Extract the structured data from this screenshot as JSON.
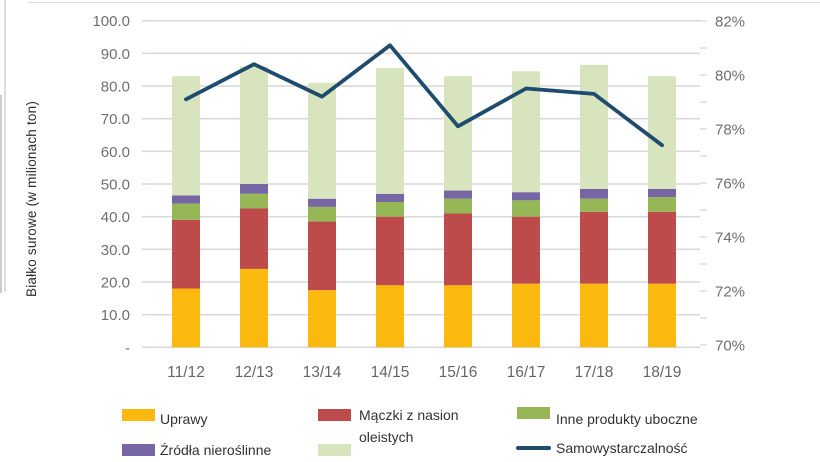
{
  "colors": {
    "grid": "#DADADA",
    "axis_text": "#6F6F6F",
    "legend_text": "#323232",
    "background": "#FFFFFF"
  },
  "chart_data": {
    "type": "stacked-bar+line",
    "title": "",
    "categories": [
      "11/12",
      "12/13",
      "13/14",
      "14/15",
      "15/16",
      "16/17",
      "17/18",
      "18/19"
    ],
    "series": [
      {
        "name": "Uprawy",
        "color": "#FBB80F",
        "values": [
          18,
          24,
          17.5,
          19,
          19,
          19.5,
          19.5,
          19.5
        ]
      },
      {
        "name": "Mączki z nasion",
        "color": "#BE4B4B",
        "values": [
          21,
          18.5,
          21,
          21,
          22,
          20.5,
          22,
          22
        ]
      },
      {
        "name": "Inne produkty uboczne",
        "color": "#95B756",
        "values": [
          5,
          4.5,
          4.5,
          4.5,
          4.5,
          5,
          4,
          4.5
        ]
      },
      {
        "name": "Źródła nieroślinne",
        "color": "#7766A4",
        "values": [
          2.5,
          3,
          2.5,
          2.5,
          2.5,
          2.5,
          3,
          2.5
        ]
      },
      {
        "name": "oleistych",
        "color": "#D8E4BE",
        "values": [
          36.5,
          36,
          35.5,
          38.5,
          35,
          37,
          38,
          34.5
        ]
      }
    ],
    "bar_totals": [
      83,
      86,
      81,
      85.5,
      83,
      84.5,
      86.5,
      83
    ],
    "line": {
      "name": "Samowystarczalność",
      "color": "#1E4B6E",
      "values": [
        79.1,
        80.4,
        79.2,
        81.1,
        78.1,
        79.5,
        79.3,
        77.4
      ]
    },
    "left_axis": {
      "title": "Białko surowe (w milionach ton)",
      "range": [
        0,
        100
      ],
      "ticks": [
        {
          "v": 100,
          "label": "100.0"
        },
        {
          "v": 90,
          "label": "90.0"
        },
        {
          "v": 80,
          "label": "80.0"
        },
        {
          "v": 70,
          "label": "70.0"
        },
        {
          "v": 60,
          "label": "60.0"
        },
        {
          "v": 50,
          "label": "50.0"
        },
        {
          "v": 40,
          "label": "40.0"
        },
        {
          "v": 30,
          "label": "30.0"
        },
        {
          "v": 20,
          "label": "20.0"
        },
        {
          "v": 10,
          "label": "10.0"
        },
        {
          "v": 0,
          "label": "-"
        }
      ]
    },
    "right_axis": {
      "range": [
        70,
        82
      ],
      "minor_step": 1,
      "ticks": [
        {
          "v": 82,
          "label": "82%"
        },
        {
          "v": 80,
          "label": "80%"
        },
        {
          "v": 78,
          "label": "78%"
        },
        {
          "v": 76,
          "label": "76%"
        },
        {
          "v": 74,
          "label": "74%"
        },
        {
          "v": 72,
          "label": "72%"
        },
        {
          "v": 70,
          "label": "70%"
        }
      ]
    },
    "grid": true,
    "legend_position": "bottom"
  },
  "legend": {
    "items": [
      {
        "label": "Uprawy",
        "color": "#FBB80F",
        "marker": "rect"
      },
      {
        "label": "Mączki z nasion",
        "color": "#BE4B4B",
        "marker": "rect"
      },
      {
        "label": "Inne produkty uboczne",
        "color": "#95B756",
        "marker": "rect"
      },
      {
        "label": "Źródła nieroślinne",
        "color": "#7766A4",
        "marker": "rect"
      },
      {
        "label": "oleistych",
        "color": "#D8E4BE",
        "marker": "rect"
      },
      {
        "label": "Samowystarczalność",
        "color": "#1E4B6E",
        "marker": "line"
      }
    ]
  }
}
